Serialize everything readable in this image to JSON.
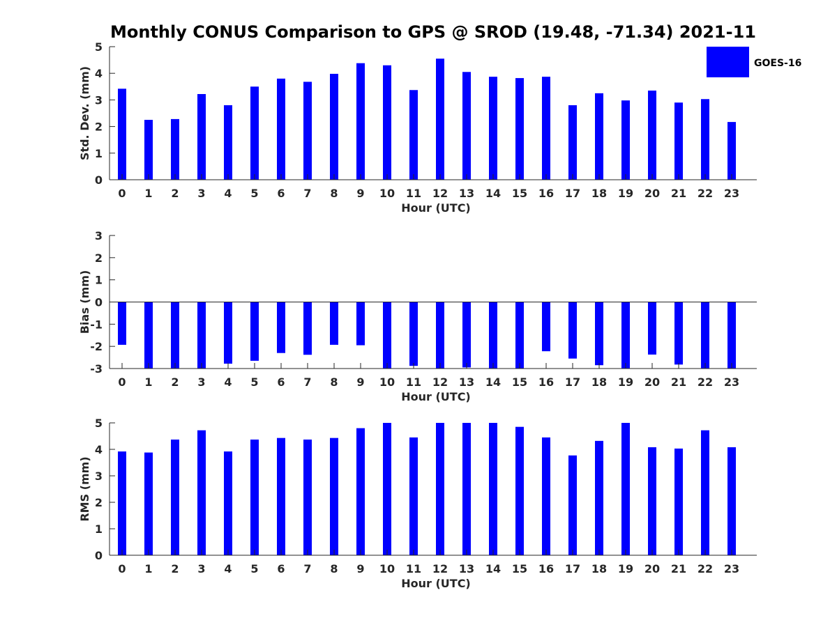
{
  "chart_data": {
    "title": "Monthly CONUS Comparison to GPS @ SROD (19.48, -71.34) 2021-11",
    "legend": {
      "label": "GOES-16",
      "placement": "top-right"
    },
    "bar_color": "#0000ff",
    "panels": [
      {
        "type": "bar",
        "name": "std-dev",
        "ylabel": "Std. Dev. (mm)",
        "xlabel": "Hour (UTC)",
        "ylim": [
          0,
          5
        ],
        "yticks": [
          "0",
          "1",
          "2",
          "3",
          "4",
          "5"
        ],
        "categories": [
          "0",
          "1",
          "2",
          "3",
          "4",
          "5",
          "6",
          "7",
          "8",
          "9",
          "10",
          "11",
          "12",
          "13",
          "14",
          "15",
          "16",
          "17",
          "18",
          "19",
          "20",
          "21",
          "22",
          "23"
        ],
        "values": [
          3.42,
          2.25,
          2.28,
          3.22,
          2.8,
          3.5,
          3.8,
          3.68,
          3.98,
          4.38,
          4.3,
          3.37,
          4.55,
          4.05,
          3.87,
          3.82,
          3.87,
          2.8,
          3.25,
          2.98,
          3.35,
          2.9,
          3.03,
          2.17
        ]
      },
      {
        "type": "bar",
        "name": "bias",
        "ylabel": "Bias (mm)",
        "xlabel": "Hour (UTC)",
        "ylim": [
          -3,
          3
        ],
        "yticks": [
          "-3",
          "-2",
          "-1",
          "0",
          "1",
          "2",
          "3"
        ],
        "zero_line": true,
        "categories": [
          "0",
          "1",
          "2",
          "3",
          "4",
          "5",
          "6",
          "7",
          "8",
          "9",
          "10",
          "11",
          "12",
          "13",
          "14",
          "15",
          "16",
          "17",
          "18",
          "19",
          "20",
          "21",
          "22",
          "23"
        ],
        "values": [
          -1.93,
          -3.0,
          -3.0,
          -3.0,
          -2.78,
          -2.65,
          -2.3,
          -2.38,
          -1.93,
          -1.95,
          -3.0,
          -2.88,
          -3.0,
          -2.95,
          -3.0,
          -3.0,
          -2.22,
          -2.55,
          -2.85,
          -3.0,
          -2.37,
          -2.82,
          -3.0,
          -3.0
        ]
      },
      {
        "type": "bar",
        "name": "rms",
        "ylabel": "RMS (mm)",
        "xlabel": "Hour (UTC)",
        "ylim": [
          0,
          5
        ],
        "yticks": [
          "0",
          "1",
          "2",
          "3",
          "4",
          "5"
        ],
        "categories": [
          "0",
          "1",
          "2",
          "3",
          "4",
          "5",
          "6",
          "7",
          "8",
          "9",
          "10",
          "11",
          "12",
          "13",
          "14",
          "15",
          "16",
          "17",
          "18",
          "19",
          "20",
          "21",
          "22",
          "23"
        ],
        "values": [
          3.92,
          3.88,
          4.37,
          4.72,
          3.92,
          4.37,
          4.43,
          4.37,
          4.43,
          4.8,
          5.0,
          4.45,
          5.0,
          5.0,
          5.0,
          4.85,
          4.45,
          3.77,
          4.32,
          5.0,
          4.08,
          4.03,
          4.72,
          4.08
        ]
      }
    ]
  }
}
